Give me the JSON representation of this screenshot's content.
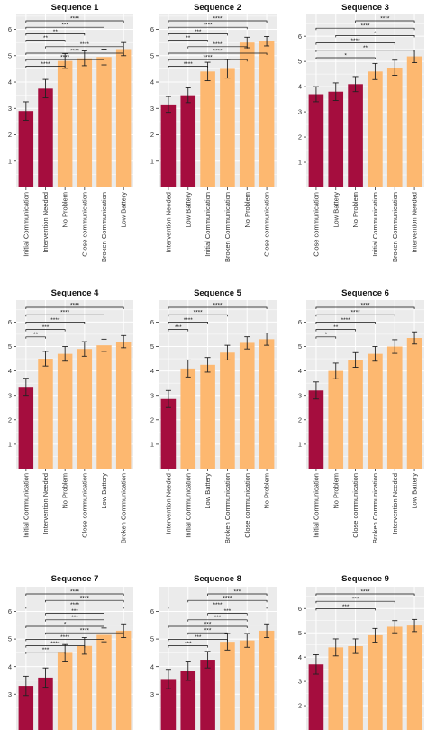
{
  "colors": {
    "dark_bar": "#a50d3e",
    "light_bar": "#fdb870",
    "panel_bg": "#ebebeb",
    "grid": "#ffffff",
    "error": "#222222"
  },
  "chart_data": [
    {
      "type": "bar",
      "title": "Sequence 1",
      "categories": [
        "Initial Communication",
        "Intervention Needed",
        "No Problem",
        "Close communication",
        "Broken Communication",
        "Low Battery"
      ],
      "values": [
        2.9,
        3.75,
        4.8,
        4.9,
        4.95,
        5.25
      ],
      "errors": [
        0.35,
        0.35,
        0.28,
        0.28,
        0.3,
        0.25
      ],
      "highlight": [
        0,
        1
      ],
      "ylim": [
        0,
        6.6
      ],
      "yticks": [
        1,
        2,
        3,
        4,
        5,
        6
      ],
      "comparisons": [
        {
          "from": 0,
          "to": 5,
          "label": "****"
        },
        {
          "from": 0,
          "to": 4,
          "label": "***"
        },
        {
          "from": 0,
          "to": 3,
          "label": "**"
        },
        {
          "from": 0,
          "to": 2,
          "label": "**"
        },
        {
          "from": 1,
          "to": 5,
          "label": "****"
        },
        {
          "from": 0,
          "to": 5,
          "label": "****"
        },
        {
          "from": 0,
          "to": 4,
          "label": "****"
        },
        {
          "from": 0,
          "to": 2,
          "label": "****"
        }
      ]
    },
    {
      "type": "bar",
      "title": "Sequence 2",
      "categories": [
        "Intervention Needed",
        "Low Battery",
        "Initial Communication",
        "Broken Communication",
        "No Problem",
        "Close communication"
      ],
      "values": [
        3.15,
        3.5,
        4.4,
        4.5,
        5.5,
        5.55
      ],
      "errors": [
        0.3,
        0.28,
        0.35,
        0.35,
        0.2,
        0.18
      ],
      "highlight": [
        0,
        1
      ],
      "ylim": [
        0,
        6.6
      ],
      "yticks": [
        1,
        2,
        3,
        4,
        5,
        6
      ],
      "comparisons": [
        {
          "from": 0,
          "to": 5,
          "label": "****"
        },
        {
          "from": 0,
          "to": 4,
          "label": "****"
        },
        {
          "from": 0,
          "to": 3,
          "label": "***"
        },
        {
          "from": 0,
          "to": 2,
          "label": "**"
        },
        {
          "from": 1,
          "to": 4,
          "label": "****"
        },
        {
          "from": 0,
          "to": 5,
          "label": "****"
        },
        {
          "from": 0,
          "to": 4,
          "label": "****"
        },
        {
          "from": 0,
          "to": 2,
          "label": "****"
        }
      ]
    },
    {
      "type": "bar",
      "title": "Sequence 3",
      "categories": [
        "Close communication",
        "Low Battery",
        "No Problem",
        "Initial Communication",
        "Broken Communication",
        "Intervention Needed"
      ],
      "values": [
        3.7,
        3.8,
        4.1,
        4.6,
        4.75,
        5.2
      ],
      "errors": [
        0.3,
        0.35,
        0.3,
        0.32,
        0.3,
        0.25
      ],
      "highlight": [
        0,
        1,
        2
      ],
      "ylim": [
        0,
        6.9
      ],
      "yticks": [
        1,
        2,
        3,
        4,
        5,
        6
      ],
      "comparisons": [
        {
          "from": 2,
          "to": 5,
          "label": "****"
        },
        {
          "from": 0,
          "to": 5,
          "label": "****"
        },
        {
          "from": 1,
          "to": 5,
          "label": "*"
        },
        {
          "from": 0,
          "to": 4,
          "label": "****"
        },
        {
          "from": 0,
          "to": 5,
          "label": "**"
        },
        {
          "from": 0,
          "to": 3,
          "label": "*"
        }
      ]
    },
    {
      "type": "bar",
      "title": "Sequence 4",
      "categories": [
        "Initial Communication",
        "Intervention Needed",
        "No Problem",
        "Close communication",
        "Low Battery",
        "Broken Communication"
      ],
      "values": [
        3.35,
        4.5,
        4.7,
        4.9,
        5.05,
        5.2
      ],
      "errors": [
        0.35,
        0.3,
        0.3,
        0.3,
        0.25,
        0.25
      ],
      "highlight": [
        0
      ],
      "ylim": [
        0,
        6.9
      ],
      "yticks": [
        1,
        2,
        3,
        4,
        5,
        6
      ],
      "comparisons": [
        {
          "from": 0,
          "to": 5,
          "label": "****"
        },
        {
          "from": 0,
          "to": 4,
          "label": "****"
        },
        {
          "from": 0,
          "to": 3,
          "label": "****"
        },
        {
          "from": 0,
          "to": 2,
          "label": "***"
        },
        {
          "from": 0,
          "to": 1,
          "label": "**"
        }
      ]
    },
    {
      "type": "bar",
      "title": "Sequence 5",
      "categories": [
        "Intervention Needed",
        "Initial Communication",
        "Low Battery",
        "Broken Communication",
        "Close communication",
        "No Problem"
      ],
      "values": [
        2.85,
        4.1,
        4.25,
        4.75,
        5.15,
        5.3
      ],
      "errors": [
        0.35,
        0.35,
        0.3,
        0.3,
        0.25,
        0.25
      ],
      "highlight": [
        0
      ],
      "ylim": [
        0,
        6.9
      ],
      "yticks": [
        1,
        2,
        3,
        4,
        5,
        6
      ],
      "comparisons": [
        {
          "from": 0,
          "to": 5,
          "label": "****"
        },
        {
          "from": 0,
          "to": 3,
          "label": "****"
        },
        {
          "from": 0,
          "to": 2,
          "label": "****"
        },
        {
          "from": 0,
          "to": 1,
          "label": "***"
        }
      ]
    },
    {
      "type": "bar",
      "title": "Sequence 6",
      "categories": [
        "Initial Communication",
        "No Problem",
        "Close communication",
        "Broken Communication",
        "Intervention Needed",
        "Low Battery"
      ],
      "values": [
        3.2,
        4.0,
        4.45,
        4.7,
        5.0,
        5.35
      ],
      "errors": [
        0.35,
        0.32,
        0.3,
        0.3,
        0.28,
        0.25
      ],
      "highlight": [
        0
      ],
      "ylim": [
        0,
        6.9
      ],
      "yticks": [
        1,
        2,
        3,
        4,
        5,
        6
      ],
      "comparisons": [
        {
          "from": 0,
          "to": 5,
          "label": "****"
        },
        {
          "from": 0,
          "to": 4,
          "label": "****"
        },
        {
          "from": 0,
          "to": 3,
          "label": "****"
        },
        {
          "from": 0,
          "to": 2,
          "label": "**"
        },
        {
          "from": 0,
          "to": 1,
          "label": "*"
        }
      ]
    },
    {
      "type": "bar",
      "title": "Sequence 7",
      "categories": [
        "",
        "",
        "",
        "",
        "",
        ""
      ],
      "values": [
        3.3,
        3.6,
        4.5,
        4.75,
        5.15,
        5.3
      ],
      "errors": [
        0.35,
        0.35,
        0.3,
        0.3,
        0.25,
        0.25
      ],
      "highlight": [
        0,
        1
      ],
      "ylim": [
        1.7,
        6.9
      ],
      "yticks": [
        3,
        4,
        5,
        6
      ],
      "comparisons": [
        {
          "from": 0,
          "to": 5,
          "label": "****"
        },
        {
          "from": 1,
          "to": 5,
          "label": "****"
        },
        {
          "from": 0,
          "to": 5,
          "label": "****"
        },
        {
          "from": 1,
          "to": 4,
          "label": "***"
        },
        {
          "from": 1,
          "to": 4,
          "label": "***"
        },
        {
          "from": 0,
          "to": 4,
          "label": "*"
        },
        {
          "from": 1,
          "to": 5,
          "label": "****"
        },
        {
          "from": 0,
          "to": 4,
          "label": "****"
        },
        {
          "from": 0,
          "to": 3,
          "label": "****"
        },
        {
          "from": 0,
          "to": 2,
          "label": "***"
        }
      ]
    },
    {
      "type": "bar",
      "title": "Sequence 8",
      "categories": [
        "",
        "",
        "",
        "",
        "",
        ""
      ],
      "values": [
        3.55,
        3.85,
        4.25,
        4.9,
        4.95,
        5.3
      ],
      "errors": [
        0.35,
        0.35,
        0.3,
        0.3,
        0.25,
        0.25
      ],
      "highlight": [
        0,
        1,
        2
      ],
      "ylim": [
        1.7,
        6.9
      ],
      "yticks": [
        3,
        4,
        5,
        6
      ],
      "comparisons": [
        {
          "from": 2,
          "to": 5,
          "label": "***"
        },
        {
          "from": 1,
          "to": 5,
          "label": "****"
        },
        {
          "from": 0,
          "to": 5,
          "label": "****"
        },
        {
          "from": 2,
          "to": 4,
          "label": "***"
        },
        {
          "from": 1,
          "to": 4,
          "label": "***"
        },
        {
          "from": 0,
          "to": 4,
          "label": "***"
        },
        {
          "from": 1,
          "to": 3,
          "label": "***"
        },
        {
          "from": 0,
          "to": 3,
          "label": "***"
        },
        {
          "from": 0,
          "to": 2,
          "label": "***"
        }
      ]
    },
    {
      "type": "bar",
      "title": "Sequence 9",
      "categories": [
        "",
        "",
        "",
        "",
        "",
        ""
      ],
      "values": [
        3.7,
        4.4,
        4.45,
        4.9,
        5.25,
        5.3
      ],
      "errors": [
        0.4,
        0.35,
        0.3,
        0.28,
        0.25,
        0.25
      ],
      "highlight": [
        0
      ],
      "ylim": [
        1.0,
        6.9
      ],
      "yticks": [
        2,
        3,
        4,
        5,
        6
      ],
      "comparisons": [
        {
          "from": 0,
          "to": 5,
          "label": "****"
        },
        {
          "from": 0,
          "to": 4,
          "label": "***"
        },
        {
          "from": 0,
          "to": 3,
          "label": "***"
        }
      ]
    }
  ]
}
